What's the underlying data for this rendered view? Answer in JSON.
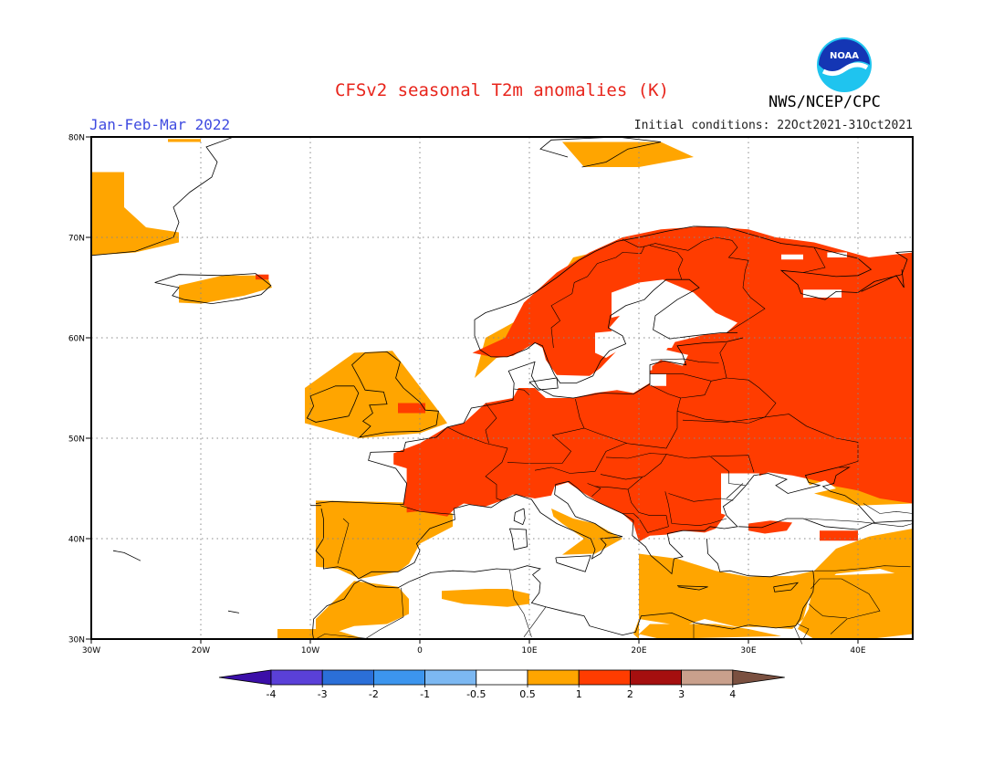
{
  "title": "CFSv2 seasonal T2m anomalies (K)",
  "period": "Jan-Feb-Mar 2022",
  "initial_conditions": "Initial conditions: 22Oct2021-31Oct2021",
  "agency": "NWS/NCEP/CPC",
  "logo_text": "NOAA",
  "colors": {
    "title": "#e8251c",
    "period": "#3f4be0",
    "ocean": "#ffffff",
    "anom_05_1": "#ffa500",
    "anom_1_2": "#ff3c00",
    "coast": "#000000",
    "grid": "#888888"
  },
  "map": {
    "lon_range": [
      -30,
      45
    ],
    "lat_range": [
      30,
      80
    ],
    "lat_labels": [
      "80N",
      "70N",
      "60N",
      "50N",
      "40N",
      "30N"
    ],
    "lon_labels": [
      "30W",
      "20W",
      "10W",
      "0",
      "10E",
      "20E",
      "30E",
      "40E"
    ]
  },
  "colorbar": {
    "labels": [
      "-4",
      "-3",
      "-2",
      "-1",
      "-0.5",
      "0.5",
      "1",
      "2",
      "3",
      "4"
    ],
    "colors": [
      "#3b0fa8",
      "#5a40d8",
      "#2b6fd8",
      "#3c95ee",
      "#7cb8f2",
      "#ffffff",
      "#ffa500",
      "#ff3c00",
      "#a50f0f",
      "#c9a08c",
      "#7a5040"
    ]
  }
}
